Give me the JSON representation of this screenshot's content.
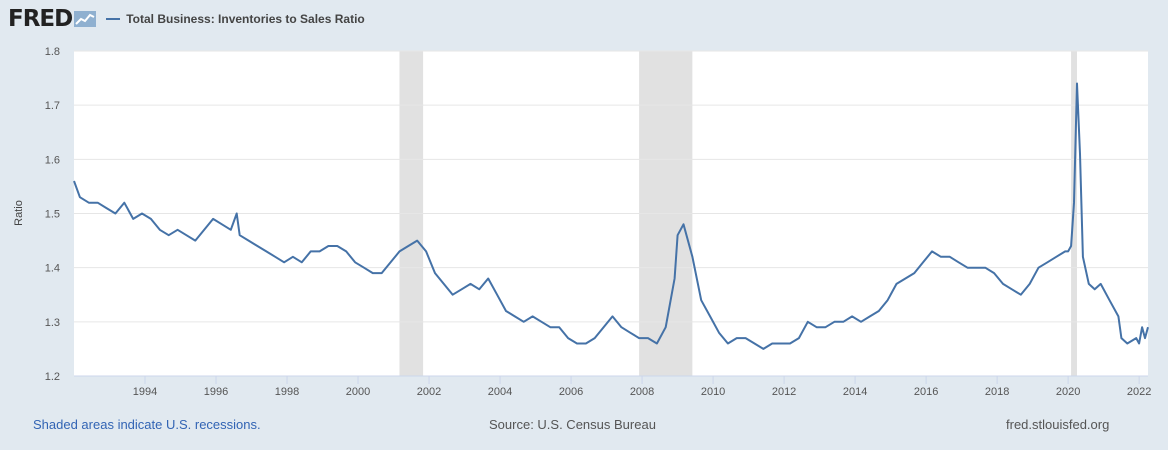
{
  "logo": {
    "text": "FRED"
  },
  "colors": {
    "line": "#4572a7",
    "recession": "#e1e1e1",
    "background": "#e1e9f0",
    "plot": "#ffffff",
    "link": "#3264b4"
  },
  "footer": {
    "recession_note": "Shaded areas indicate U.S. recessions.",
    "source": "Source: U.S. Census Bureau",
    "site": "fred.stlouisfed.org"
  },
  "chart_data": {
    "type": "line",
    "title": "",
    "xlabel": "",
    "ylabel": "Ratio",
    "ylim": [
      1.2,
      1.8
    ],
    "xlim": [
      "1992-01",
      "2022-04"
    ],
    "yticks": [
      "1.2",
      "1.3",
      "1.4",
      "1.5",
      "1.6",
      "1.7",
      "1.8"
    ],
    "xticks": [
      "1994",
      "1996",
      "1998",
      "2000",
      "2002",
      "2004",
      "2006",
      "2008",
      "2010",
      "2012",
      "2014",
      "2016",
      "2018",
      "2020",
      "2022"
    ],
    "grid": "horizontal",
    "legend": "top-left",
    "recessions": [
      {
        "start": "2001-03",
        "end": "2001-11"
      },
      {
        "start": "2007-12",
        "end": "2009-06"
      },
      {
        "start": "2020-02",
        "end": "2020-04"
      }
    ],
    "series": [
      {
        "name": "Total Business: Inventories to Sales Ratio",
        "points": [
          [
            "1992-01",
            1.56
          ],
          [
            "1992-03",
            1.53
          ],
          [
            "1992-06",
            1.52
          ],
          [
            "1992-09",
            1.52
          ],
          [
            "1992-12",
            1.51
          ],
          [
            "1993-03",
            1.5
          ],
          [
            "1993-06",
            1.52
          ],
          [
            "1993-09",
            1.49
          ],
          [
            "1993-12",
            1.5
          ],
          [
            "1994-03",
            1.49
          ],
          [
            "1994-06",
            1.47
          ],
          [
            "1994-09",
            1.46
          ],
          [
            "1994-12",
            1.47
          ],
          [
            "1995-03",
            1.46
          ],
          [
            "1995-06",
            1.45
          ],
          [
            "1995-09",
            1.47
          ],
          [
            "1995-12",
            1.49
          ],
          [
            "1996-03",
            1.48
          ],
          [
            "1996-06",
            1.47
          ],
          [
            "1996-08",
            1.5
          ],
          [
            "1996-09",
            1.46
          ],
          [
            "1996-12",
            1.45
          ],
          [
            "1997-03",
            1.44
          ],
          [
            "1997-06",
            1.43
          ],
          [
            "1997-09",
            1.42
          ],
          [
            "1997-12",
            1.41
          ],
          [
            "1998-03",
            1.42
          ],
          [
            "1998-06",
            1.41
          ],
          [
            "1998-09",
            1.43
          ],
          [
            "1998-12",
            1.43
          ],
          [
            "1999-03",
            1.44
          ],
          [
            "1999-06",
            1.44
          ],
          [
            "1999-09",
            1.43
          ],
          [
            "1999-12",
            1.41
          ],
          [
            "2000-03",
            1.4
          ],
          [
            "2000-06",
            1.39
          ],
          [
            "2000-09",
            1.39
          ],
          [
            "2000-12",
            1.41
          ],
          [
            "2001-03",
            1.43
          ],
          [
            "2001-06",
            1.44
          ],
          [
            "2001-09",
            1.45
          ],
          [
            "2001-12",
            1.43
          ],
          [
            "2002-03",
            1.39
          ],
          [
            "2002-06",
            1.37
          ],
          [
            "2002-09",
            1.35
          ],
          [
            "2002-12",
            1.36
          ],
          [
            "2003-03",
            1.37
          ],
          [
            "2003-06",
            1.36
          ],
          [
            "2003-09",
            1.38
          ],
          [
            "2003-12",
            1.35
          ],
          [
            "2004-03",
            1.32
          ],
          [
            "2004-06",
            1.31
          ],
          [
            "2004-09",
            1.3
          ],
          [
            "2004-12",
            1.31
          ],
          [
            "2005-03",
            1.3
          ],
          [
            "2005-06",
            1.29
          ],
          [
            "2005-09",
            1.29
          ],
          [
            "2005-12",
            1.27
          ],
          [
            "2006-03",
            1.26
          ],
          [
            "2006-06",
            1.26
          ],
          [
            "2006-09",
            1.27
          ],
          [
            "2006-12",
            1.29
          ],
          [
            "2007-03",
            1.31
          ],
          [
            "2007-06",
            1.29
          ],
          [
            "2007-09",
            1.28
          ],
          [
            "2007-12",
            1.27
          ],
          [
            "2008-03",
            1.27
          ],
          [
            "2008-06",
            1.26
          ],
          [
            "2008-09",
            1.29
          ],
          [
            "2008-12",
            1.38
          ],
          [
            "2009-01",
            1.46
          ],
          [
            "2009-03",
            1.48
          ],
          [
            "2009-06",
            1.42
          ],
          [
            "2009-09",
            1.34
          ],
          [
            "2009-12",
            1.31
          ],
          [
            "2010-03",
            1.28
          ],
          [
            "2010-06",
            1.26
          ],
          [
            "2010-09",
            1.27
          ],
          [
            "2010-12",
            1.27
          ],
          [
            "2011-03",
            1.26
          ],
          [
            "2011-06",
            1.25
          ],
          [
            "2011-09",
            1.26
          ],
          [
            "2011-12",
            1.26
          ],
          [
            "2012-03",
            1.26
          ],
          [
            "2012-06",
            1.27
          ],
          [
            "2012-09",
            1.3
          ],
          [
            "2012-12",
            1.29
          ],
          [
            "2013-03",
            1.29
          ],
          [
            "2013-06",
            1.3
          ],
          [
            "2013-09",
            1.3
          ],
          [
            "2013-12",
            1.31
          ],
          [
            "2014-03",
            1.3
          ],
          [
            "2014-06",
            1.31
          ],
          [
            "2014-09",
            1.32
          ],
          [
            "2014-12",
            1.34
          ],
          [
            "2015-03",
            1.37
          ],
          [
            "2015-06",
            1.38
          ],
          [
            "2015-09",
            1.39
          ],
          [
            "2015-12",
            1.41
          ],
          [
            "2016-03",
            1.43
          ],
          [
            "2016-06",
            1.42
          ],
          [
            "2016-09",
            1.42
          ],
          [
            "2016-12",
            1.41
          ],
          [
            "2017-03",
            1.4
          ],
          [
            "2017-06",
            1.4
          ],
          [
            "2017-09",
            1.4
          ],
          [
            "2017-12",
            1.39
          ],
          [
            "2018-03",
            1.37
          ],
          [
            "2018-06",
            1.36
          ],
          [
            "2018-09",
            1.35
          ],
          [
            "2018-12",
            1.37
          ],
          [
            "2019-03",
            1.4
          ],
          [
            "2019-06",
            1.41
          ],
          [
            "2019-09",
            1.42
          ],
          [
            "2019-12",
            1.43
          ],
          [
            "2020-01",
            1.43
          ],
          [
            "2020-02",
            1.44
          ],
          [
            "2020-03",
            1.52
          ],
          [
            "2020-04",
            1.74
          ],
          [
            "2020-05",
            1.61
          ],
          [
            "2020-06",
            1.42
          ],
          [
            "2020-08",
            1.37
          ],
          [
            "2020-10",
            1.36
          ],
          [
            "2020-12",
            1.37
          ],
          [
            "2021-03",
            1.34
          ],
          [
            "2021-06",
            1.31
          ],
          [
            "2021-07",
            1.27
          ],
          [
            "2021-09",
            1.26
          ],
          [
            "2021-12",
            1.27
          ],
          [
            "2022-01",
            1.26
          ],
          [
            "2022-02",
            1.29
          ],
          [
            "2022-03",
            1.27
          ],
          [
            "2022-04",
            1.29
          ]
        ]
      }
    ]
  }
}
